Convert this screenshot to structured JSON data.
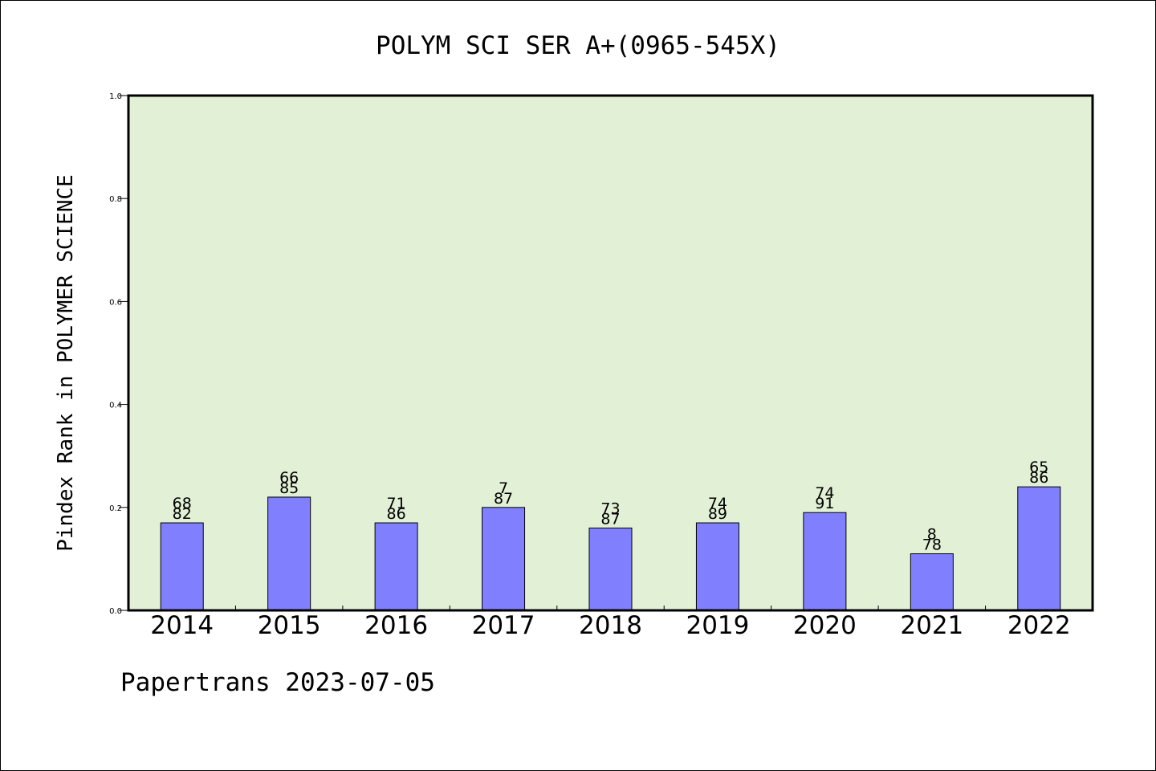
{
  "chart_data": {
    "type": "bar",
    "title": "POLYM SCI SER A+(0965-545X)",
    "ylabel": "Pindex Rank in POLYMER SCIENCE",
    "xlabel": "",
    "categories": [
      "2014",
      "2015",
      "2016",
      "2017",
      "2018",
      "2019",
      "2020",
      "2021",
      "2022"
    ],
    "values": [
      0.17,
      0.22,
      0.17,
      0.2,
      0.16,
      0.17,
      0.19,
      0.11,
      0.24
    ],
    "label_top": [
      "68",
      "66",
      "71",
      "7",
      "73",
      "74",
      "74",
      "8",
      "65"
    ],
    "label_bottom": [
      "82",
      "85",
      "86",
      "87",
      "87",
      "89",
      "91",
      "78",
      "86"
    ],
    "ylim": [
      0,
      1.0
    ],
    "yticks": [
      "0.0",
      "0.2",
      "0.4",
      "0.6",
      "0.8",
      "1.0"
    ],
    "grid": false,
    "colors": {
      "plot_bg": "#e2f0d6",
      "bar_fill": "#8080ff",
      "bar_stroke": "#000000"
    }
  },
  "footer": {
    "text": "Papertrans 2023-07-05"
  }
}
